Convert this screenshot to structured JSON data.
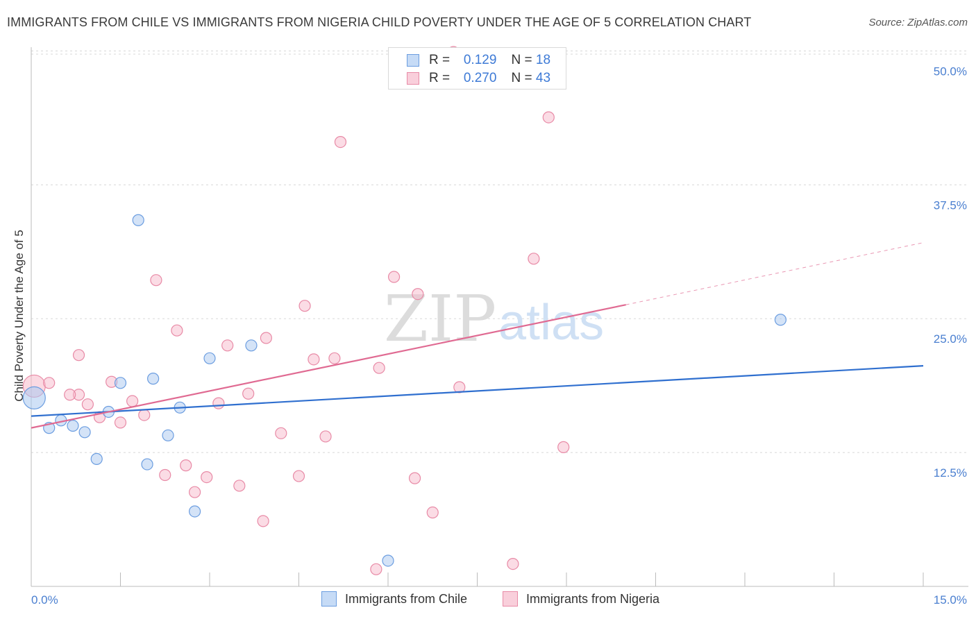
{
  "title": "IMMIGRANTS FROM CHILE VS IMMIGRANTS FROM NIGERIA CHILD POVERTY UNDER THE AGE OF 5 CORRELATION CHART",
  "source": "Source: ZipAtlas.com",
  "watermark": {
    "zip": "ZIP",
    "atlas": "atlas"
  },
  "legend": {
    "chile": {
      "r_label": "R =",
      "r_value": "0.129",
      "n_label": "N =",
      "n_value": "18"
    },
    "nigeria": {
      "r_label": "R =",
      "r_value": "0.270",
      "n_label": "N =",
      "n_value": "43"
    }
  },
  "bottom_legend": {
    "chile": "Immigrants from Chile",
    "nigeria": "Immigrants from Nigeria"
  },
  "colors": {
    "chile_fill": "#a9c8f0",
    "chile_stroke": "#6b9de0",
    "chile_line": "#2f6fcf",
    "nigeria_fill": "#f7b9cb",
    "nigeria_stroke": "#e88aa6",
    "nigeria_line": "#e06a92",
    "tick_text": "#4a7fd0",
    "grid": "#d8d8d8"
  },
  "chart_data": {
    "type": "scatter",
    "title": "IMMIGRANTS FROM CHILE VS IMMIGRANTS FROM NIGERIA CHILD POVERTY UNDER THE AGE OF 5 CORRELATION CHART",
    "xlabel": "",
    "ylabel": "Child Poverty Under the Age of 5",
    "xlim": [
      0,
      15
    ],
    "ylim": [
      0,
      51
    ],
    "x_tick_labels": [
      "0.0%",
      "15.0%"
    ],
    "y_ticks": [
      12.5,
      25,
      37.5,
      50
    ],
    "y_tick_labels": [
      "12.5%",
      "25.0%",
      "37.5%",
      "50.0%"
    ],
    "grid": true,
    "legend_placement": "top-center",
    "series": [
      {
        "name": "Immigrants from Chile",
        "points": [
          [
            0.05,
            17.6,
            "large"
          ],
          [
            0.3,
            14.8
          ],
          [
            0.5,
            15.5
          ],
          [
            0.7,
            15.0
          ],
          [
            0.9,
            14.4
          ],
          [
            1.1,
            11.9
          ],
          [
            1.3,
            16.3
          ],
          [
            1.5,
            19.0
          ],
          [
            1.8,
            34.2
          ],
          [
            1.95,
            11.4
          ],
          [
            2.05,
            19.4
          ],
          [
            2.3,
            14.1
          ],
          [
            2.5,
            16.7
          ],
          [
            2.75,
            7.0
          ],
          [
            3.0,
            21.3
          ],
          [
            3.7,
            22.5
          ],
          [
            6.0,
            2.4
          ],
          [
            12.6,
            24.9
          ]
        ],
        "trend": {
          "x0": 0,
          "y0": 15.9,
          "x1": 15,
          "y1": 20.6
        }
      },
      {
        "name": "Immigrants from Nigeria",
        "points": [
          [
            0.05,
            18.7,
            "large"
          ],
          [
            0.3,
            19.0
          ],
          [
            0.8,
            17.9
          ],
          [
            0.65,
            17.9
          ],
          [
            0.8,
            21.6
          ],
          [
            0.95,
            17.0
          ],
          [
            1.15,
            15.8
          ],
          [
            1.35,
            19.1
          ],
          [
            1.5,
            15.3
          ],
          [
            1.7,
            17.3
          ],
          [
            1.9,
            16.0
          ],
          [
            2.1,
            28.6
          ],
          [
            2.25,
            10.4
          ],
          [
            2.45,
            23.9
          ],
          [
            2.6,
            11.3
          ],
          [
            2.75,
            8.8
          ],
          [
            2.95,
            10.2
          ],
          [
            3.15,
            17.1
          ],
          [
            3.3,
            22.5
          ],
          [
            3.5,
            9.4
          ],
          [
            3.65,
            18.0
          ],
          [
            3.9,
            6.1
          ],
          [
            3.95,
            23.2
          ],
          [
            4.2,
            14.3
          ],
          [
            4.5,
            10.3
          ],
          [
            4.6,
            26.2
          ],
          [
            4.75,
            21.2
          ],
          [
            4.95,
            14.0
          ],
          [
            5.1,
            21.3
          ],
          [
            5.2,
            41.5
          ],
          [
            5.8,
            1.6
          ],
          [
            5.85,
            20.4
          ],
          [
            6.1,
            28.9
          ],
          [
            6.45,
            10.1
          ],
          [
            6.5,
            27.3
          ],
          [
            6.75,
            6.9
          ],
          [
            7.1,
            49.9
          ],
          [
            7.2,
            18.6
          ],
          [
            7.85,
            47.6
          ],
          [
            8.1,
            2.1
          ],
          [
            8.45,
            30.6
          ],
          [
            8.7,
            43.8
          ],
          [
            8.95,
            13.0
          ]
        ],
        "trend": {
          "x0": 0,
          "y0": 14.8,
          "x1": 10.0,
          "y1": 26.3,
          "dashed_to_x": 15,
          "dashed_to_y": 32.1
        }
      }
    ]
  }
}
